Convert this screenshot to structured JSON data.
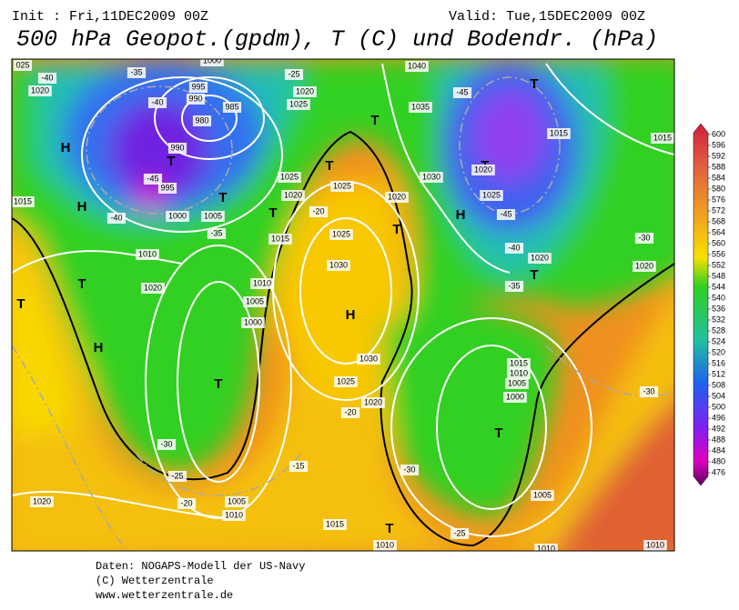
{
  "header": {
    "init": "Init : Fri,11DEC2009  00Z",
    "valid": "Valid: Tue,15DEC2009  00Z",
    "title": "500 hPa Geopot.(gpdm), T (C) und Bodendr. (hPa)"
  },
  "colorbar": {
    "ticks": [
      600,
      596,
      592,
      588,
      584,
      580,
      576,
      572,
      568,
      564,
      560,
      556,
      552,
      548,
      544,
      540,
      536,
      532,
      528,
      524,
      520,
      516,
      512,
      508,
      504,
      500,
      496,
      492,
      488,
      484,
      480,
      476
    ]
  },
  "map": {
    "labels": [
      "H",
      "H",
      "H",
      "H",
      "H",
      "T",
      "T",
      "T",
      "T",
      "T",
      "T",
      "T",
      "T",
      "T",
      "T",
      "T",
      "T",
      "T",
      "T",
      "025",
      "1020",
      "1015",
      "1010",
      "1020",
      "1010",
      "1005",
      "1000",
      "1005",
      "1010",
      "1015",
      "1015",
      "1010",
      "1020",
      "990",
      "995",
      "1000",
      "1005",
      "1015",
      "1025",
      "1020",
      "1025",
      "1020",
      "1040",
      "1035",
      "1030",
      "1025",
      "1025",
      "1030",
      "1020",
      "1030",
      "1025",
      "1020",
      "1020",
      "1025",
      "1015",
      "1015",
      "1020",
      "1020",
      "1015",
      "1010",
      "1005",
      "1000",
      "1005",
      "1010",
      "1010",
      "995",
      "990",
      "985",
      "980",
      "1000",
      "-40",
      "-35",
      "-40",
      "-45",
      "-40",
      "-35",
      "-25",
      "-20",
      "-30",
      "-25",
      "-20",
      "-15",
      "-20",
      "-30",
      "-25",
      "-45",
      "-45",
      "-40",
      "-35",
      "-30",
      "-30"
    ]
  },
  "footer": {
    "lines": [
      "Daten: NOGAPS-Modell der US-Navy",
      "(C) Wetterzentrale",
      "www.wetterzentrale.de"
    ]
  }
}
